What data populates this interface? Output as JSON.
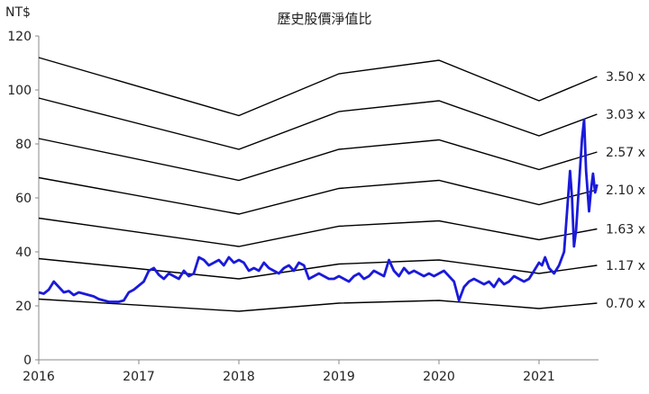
{
  "chart_data": {
    "type": "line",
    "title": "歷史股價淨值比",
    "ylabel": "NT$",
    "xlabel": "",
    "xlim": [
      2016,
      2021.6
    ],
    "ylim": [
      0,
      120
    ],
    "yticks": [
      0,
      20,
      40,
      60,
      80,
      100,
      120
    ],
    "xticks": [
      2016,
      2017,
      2018,
      2019,
      2020,
      2021
    ],
    "grid": false,
    "colors": {
      "price": "#1a1adb",
      "band": "#000000",
      "axis": "#888888"
    },
    "bands": [
      {
        "name": "3.50 x",
        "points": [
          [
            2016,
            112
          ],
          [
            2018,
            90.5
          ],
          [
            2019,
            106
          ],
          [
            2020,
            111
          ],
          [
            2021,
            96
          ],
          [
            2021.58,
            105
          ]
        ]
      },
      {
        "name": "3.03 x",
        "points": [
          [
            2016,
            97
          ],
          [
            2018,
            78
          ],
          [
            2019,
            92
          ],
          [
            2020,
            96
          ],
          [
            2021,
            83
          ],
          [
            2021.58,
            91
          ]
        ]
      },
      {
        "name": "2.57 x",
        "points": [
          [
            2016,
            82
          ],
          [
            2018,
            66.5
          ],
          [
            2019,
            78
          ],
          [
            2020,
            81.5
          ],
          [
            2021,
            70.5
          ],
          [
            2021.58,
            77
          ]
        ]
      },
      {
        "name": "2.10 x",
        "points": [
          [
            2016,
            67.5
          ],
          [
            2018,
            54
          ],
          [
            2019,
            63.5
          ],
          [
            2020,
            66.5
          ],
          [
            2021,
            57.5
          ],
          [
            2021.58,
            63
          ]
        ]
      },
      {
        "name": "1.63 x",
        "points": [
          [
            2016,
            52.5
          ],
          [
            2018,
            42
          ],
          [
            2019,
            49.5
          ],
          [
            2020,
            51.5
          ],
          [
            2021,
            44.5
          ],
          [
            2021.58,
            48.5
          ]
        ]
      },
      {
        "name": "1.17 x",
        "points": [
          [
            2016,
            37.5
          ],
          [
            2018,
            30
          ],
          [
            2019,
            35.5
          ],
          [
            2020,
            37
          ],
          [
            2021,
            32
          ],
          [
            2021.58,
            35
          ]
        ]
      },
      {
        "name": "0.70 x",
        "points": [
          [
            2016,
            22.5
          ],
          [
            2018,
            18
          ],
          [
            2019,
            21
          ],
          [
            2020,
            22
          ],
          [
            2021,
            19
          ],
          [
            2021.58,
            21
          ]
        ]
      }
    ],
    "series": [
      {
        "x": [
          2016,
          2016.05,
          2016.1,
          2016.15,
          2016.2,
          2016.25,
          2016.3,
          2016.35,
          2016.4,
          2016.45,
          2016.5,
          2016.55,
          2016.6,
          2016.65,
          2016.7,
          2016.75,
          2016.8,
          2016.85,
          2016.9,
          2016.95,
          2017,
          2017.05,
          2017.1,
          2017.15,
          2017.2,
          2017.25,
          2017.3,
          2017.35,
          2017.4,
          2017.45,
          2017.5,
          2017.55,
          2017.6,
          2017.65,
          2017.7,
          2017.75,
          2017.8,
          2017.85,
          2017.9,
          2017.95,
          2018,
          2018.05,
          2018.1,
          2018.15,
          2018.2,
          2018.25,
          2018.3,
          2018.35,
          2018.4,
          2018.45,
          2018.5,
          2018.55,
          2018.6,
          2018.65,
          2018.7,
          2018.75,
          2018.8,
          2018.85,
          2018.9,
          2018.95,
          2019,
          2019.05,
          2019.1,
          2019.15,
          2019.2,
          2019.25,
          2019.3,
          2019.35,
          2019.4,
          2019.45,
          2019.5,
          2019.55,
          2019.6,
          2019.65,
          2019.7,
          2019.75,
          2019.8,
          2019.85,
          2019.9,
          2019.95,
          2020,
          2020.05,
          2020.1,
          2020.15,
          2020.2,
          2020.25,
          2020.3,
          2020.35,
          2020.4,
          2020.45,
          2020.5,
          2020.55,
          2020.6,
          2020.65,
          2020.7,
          2020.75,
          2020.8,
          2020.85,
          2020.9,
          2020.95,
          2021,
          2021.03,
          2021.06,
          2021.1,
          2021.15,
          2021.2,
          2021.25,
          2021.28,
          2021.31,
          2021.33,
          2021.35,
          2021.37,
          2021.4,
          2021.43,
          2021.45,
          2021.47,
          2021.5,
          2021.52,
          2021.54,
          2021.56,
          2021.58
        ],
        "y": [
          25,
          24.5,
          26,
          29,
          27,
          25,
          25.5,
          24,
          25,
          24.5,
          24,
          23.5,
          22.5,
          22,
          21.5,
          21.5,
          21.5,
          22,
          25,
          26,
          27.5,
          29,
          33,
          34,
          31.5,
          30,
          32,
          31,
          30,
          33,
          31,
          32,
          38,
          37,
          35,
          36,
          37,
          35,
          38,
          36,
          37,
          36,
          33,
          34,
          33,
          36,
          34,
          33,
          32,
          34,
          35,
          33,
          36,
          35,
          30,
          31,
          32,
          31,
          30,
          30,
          31,
          30,
          29,
          31,
          32,
          30,
          31,
          33,
          32,
          31,
          37,
          33,
          31,
          34,
          32,
          33,
          32,
          31,
          32,
          31,
          32,
          33,
          31,
          29,
          22,
          27,
          29,
          30,
          29,
          28,
          29,
          27,
          30,
          28,
          29,
          31,
          30,
          29,
          30,
          33,
          36,
          35,
          38,
          34,
          32,
          35,
          40,
          55,
          70,
          60,
          42,
          48,
          65,
          82,
          89,
          70,
          55,
          63,
          69,
          62,
          65
        ]
      }
    ]
  }
}
